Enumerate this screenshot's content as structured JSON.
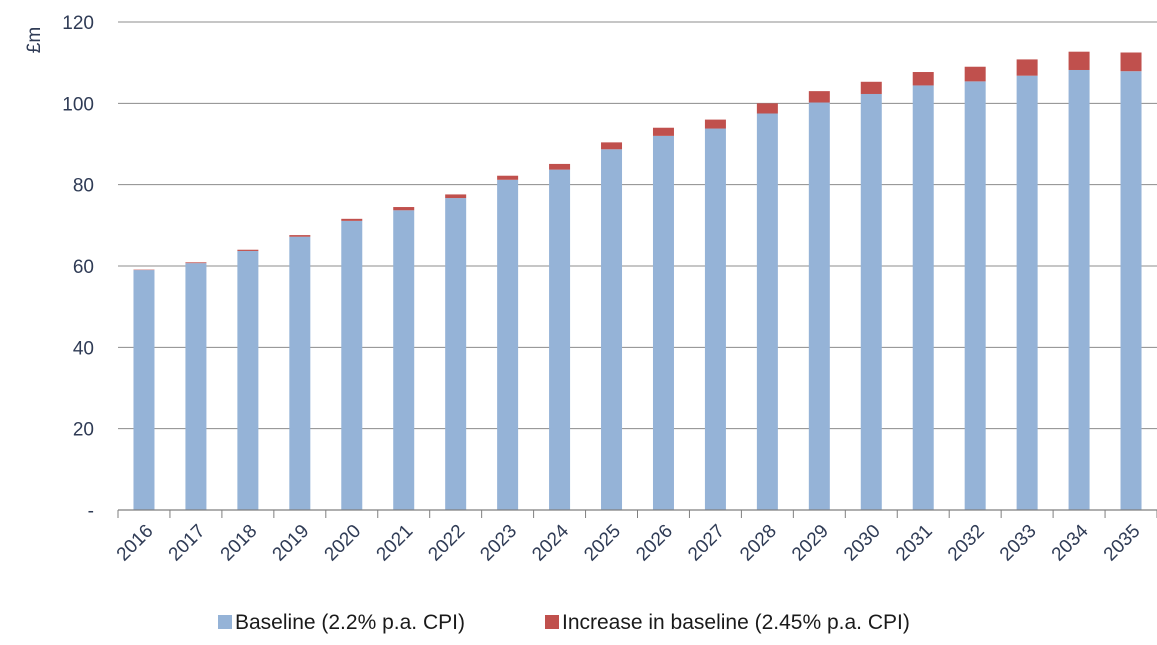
{
  "chart_data": {
    "type": "bar",
    "stacked": true,
    "ylabel": "£m",
    "ylim": [
      0,
      120
    ],
    "yticks": [
      {
        "value": 0,
        "label": "-"
      },
      {
        "value": 20,
        "label": "20"
      },
      {
        "value": 40,
        "label": "40"
      },
      {
        "value": 60,
        "label": "60"
      },
      {
        "value": 80,
        "label": "80"
      },
      {
        "value": 100,
        "label": "100"
      },
      {
        "value": 120,
        "label": "120"
      }
    ],
    "grid": true,
    "legend_position": "bottom",
    "categories": [
      "2016",
      "2017",
      "2018",
      "2019",
      "2020",
      "2021",
      "2022",
      "2023",
      "2024",
      "2025",
      "2026",
      "2027",
      "2028",
      "2029",
      "2030",
      "2031",
      "2032",
      "2033",
      "2034",
      "2035"
    ],
    "series": [
      {
        "name": "Baseline (2.2% p.a. CPI)",
        "color": "#95b3d7",
        "values": [
          59.0,
          60.7,
          63.7,
          67.2,
          71.1,
          73.7,
          76.7,
          81.2,
          83.7,
          88.7,
          92.0,
          93.8,
          97.5,
          100.2,
          102.3,
          104.4,
          105.4,
          106.8,
          108.2,
          107.9
        ]
      },
      {
        "name": "Increase in baseline (2.45% p.a. CPI)",
        "color": "#c0504d",
        "values": [
          0.1,
          0.2,
          0.3,
          0.4,
          0.5,
          0.8,
          0.9,
          1.0,
          1.4,
          1.7,
          2.0,
          2.2,
          2.5,
          2.8,
          3.0,
          3.3,
          3.6,
          4.0,
          4.5,
          4.6
        ]
      }
    ]
  }
}
